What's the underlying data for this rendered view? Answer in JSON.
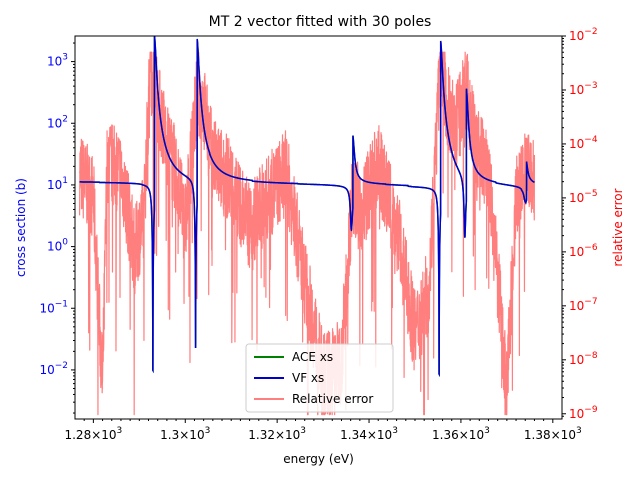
{
  "chart_data": {
    "type": "line",
    "title": "MT 2 vector fitted with 30 poles",
    "xlabel": "energy (eV)",
    "ylabel_left": "cross section (b)",
    "ylabel_right": "relative error",
    "xlim": [
      1276,
      1382
    ],
    "ylim_left": [
      0.0016,
      2600
    ],
    "ylim_right": [
      8e-10,
      0.01
    ],
    "yscale_left": "log",
    "yscale_right": "log",
    "grid": false,
    "legend_location": "bottom-center",
    "colors": {
      "ace": "#008000",
      "vf": "#0000cc",
      "error": "#ff7f7f",
      "left_axis": "#0000ff",
      "right_axis": "#ff0000"
    },
    "x_ticks": [
      {
        "value": 1280,
        "base": "1.28",
        "exp": "3"
      },
      {
        "value": 1300,
        "base": "1.3",
        "exp": "3"
      },
      {
        "value": 1320,
        "base": "1.32",
        "exp": "3"
      },
      {
        "value": 1340,
        "base": "1.34",
        "exp": "3"
      },
      {
        "value": 1360,
        "base": "1.36",
        "exp": "3"
      },
      {
        "value": 1380,
        "base": "1.38",
        "exp": "3"
      }
    ],
    "y_left_ticks": [
      {
        "value": 0.01,
        "exp": "−2"
      },
      {
        "value": 0.1,
        "exp": "−1"
      },
      {
        "value": 1,
        "exp": "0"
      },
      {
        "value": 10,
        "exp": "1"
      },
      {
        "value": 100,
        "exp": "2"
      },
      {
        "value": 1000,
        "exp": "3"
      }
    ],
    "y_right_ticks": [
      {
        "value": 1e-09,
        "exp": "−9"
      },
      {
        "value": 1e-08,
        "exp": "−8"
      },
      {
        "value": 1e-07,
        "exp": "−7"
      },
      {
        "value": 1e-06,
        "exp": "−6"
      },
      {
        "value": 1e-05,
        "exp": "−5"
      },
      {
        "value": 0.0001,
        "exp": "−4"
      },
      {
        "value": 0.001,
        "exp": "−3"
      },
      {
        "value": 0.01,
        "exp": "−2"
      }
    ],
    "tick_base": "10",
    "resonances": [
      {
        "E": 1293.3,
        "peak": 1400,
        "dip": 0.0033
      },
      {
        "E": 1302.6,
        "peak": 1000,
        "dip": 0.021
      },
      {
        "E": 1336.5,
        "peak": 35,
        "dip": 2.6
      },
      {
        "E": 1355.6,
        "peak": 1300,
        "dip": 0.0033
      },
      {
        "E": 1361.2,
        "peak": 140,
        "dip": 1.3
      },
      {
        "E": 1374.3,
        "peak": 14,
        "dip": 8
      }
    ],
    "series": [
      {
        "name": "ACE xs",
        "x": [
          1277,
          1285,
          1290,
          1293.0,
          1293.3,
          1293.6,
          1296,
          1300,
          1302.4,
          1302.6,
          1302.8,
          1306,
          1315,
          1325,
          1336.3,
          1336.5,
          1336.7,
          1345,
          1355.3,
          1355.6,
          1355.9,
          1358,
          1361.0,
          1361.2,
          1361.4,
          1368,
          1374.1,
          1374.3,
          1374.5,
          1376
        ],
        "y": [
          11.2,
          10.1,
          7.5,
          0.0033,
          1400,
          300,
          30,
          13,
          0.021,
          1000,
          60,
          20,
          14.5,
          12.5,
          2.6,
          35,
          11,
          10.5,
          0.0033,
          1300,
          80,
          22,
          1.3,
          140,
          17,
          11.5,
          8,
          14,
          9.5,
          9
        ]
      },
      {
        "name": "VF xs",
        "x": [
          1277,
          1285,
          1290,
          1293.0,
          1293.3,
          1293.6,
          1296,
          1300,
          1302.4,
          1302.6,
          1302.8,
          1306,
          1315,
          1325,
          1336.3,
          1336.5,
          1336.7,
          1345,
          1355.3,
          1355.6,
          1355.9,
          1358,
          1361.0,
          1361.2,
          1361.4,
          1368,
          1374.1,
          1374.3,
          1374.5,
          1376
        ],
        "y": [
          11.2,
          10.1,
          7.5,
          0.0033,
          1400,
          300,
          30,
          13,
          0.021,
          1000,
          60,
          20,
          14.5,
          12.5,
          2.6,
          35,
          11,
          10.5,
          0.0033,
          1300,
          80,
          22,
          1.3,
          140,
          17,
          11.5,
          8,
          14,
          9.5,
          9
        ]
      },
      {
        "name": "Relative error",
        "x": [
          1277,
          1278,
          1280,
          1282,
          1283,
          1286,
          1289,
          1291,
          1292.5,
          1293.3,
          1294.5,
          1296,
          1298,
          1300,
          1302.6,
          1304,
          1306,
          1310,
          1314,
          1318,
          1322,
          1326,
          1330,
          1334,
          1336.5,
          1338,
          1342,
          1346,
          1350,
          1353,
          1355.6,
          1357,
          1359,
          1361.2,
          1363,
          1366,
          1370,
          1372,
          1374.3,
          1376
        ],
        "y": [
          3e-05,
          2e-05,
          1e-05,
          3e-09,
          5e-05,
          3e-05,
          1e-06,
          5e-06,
          0.005,
          0.001,
          0.0004,
          0.0001,
          3e-05,
          3e-06,
          0.001,
          0.0005,
          5e-05,
          2e-05,
          3e-06,
          1e-05,
          3e-05,
          3e-07,
          5e-09,
          1e-08,
          2e-05,
          5e-06,
          4e-05,
          3e-06,
          3e-08,
          2e-07,
          0.005,
          0.0005,
          0.0002,
          0.001,
          0.0001,
          3e-05,
          3e-09,
          1e-05,
          3e-05,
          2e-05
        ]
      }
    ]
  }
}
